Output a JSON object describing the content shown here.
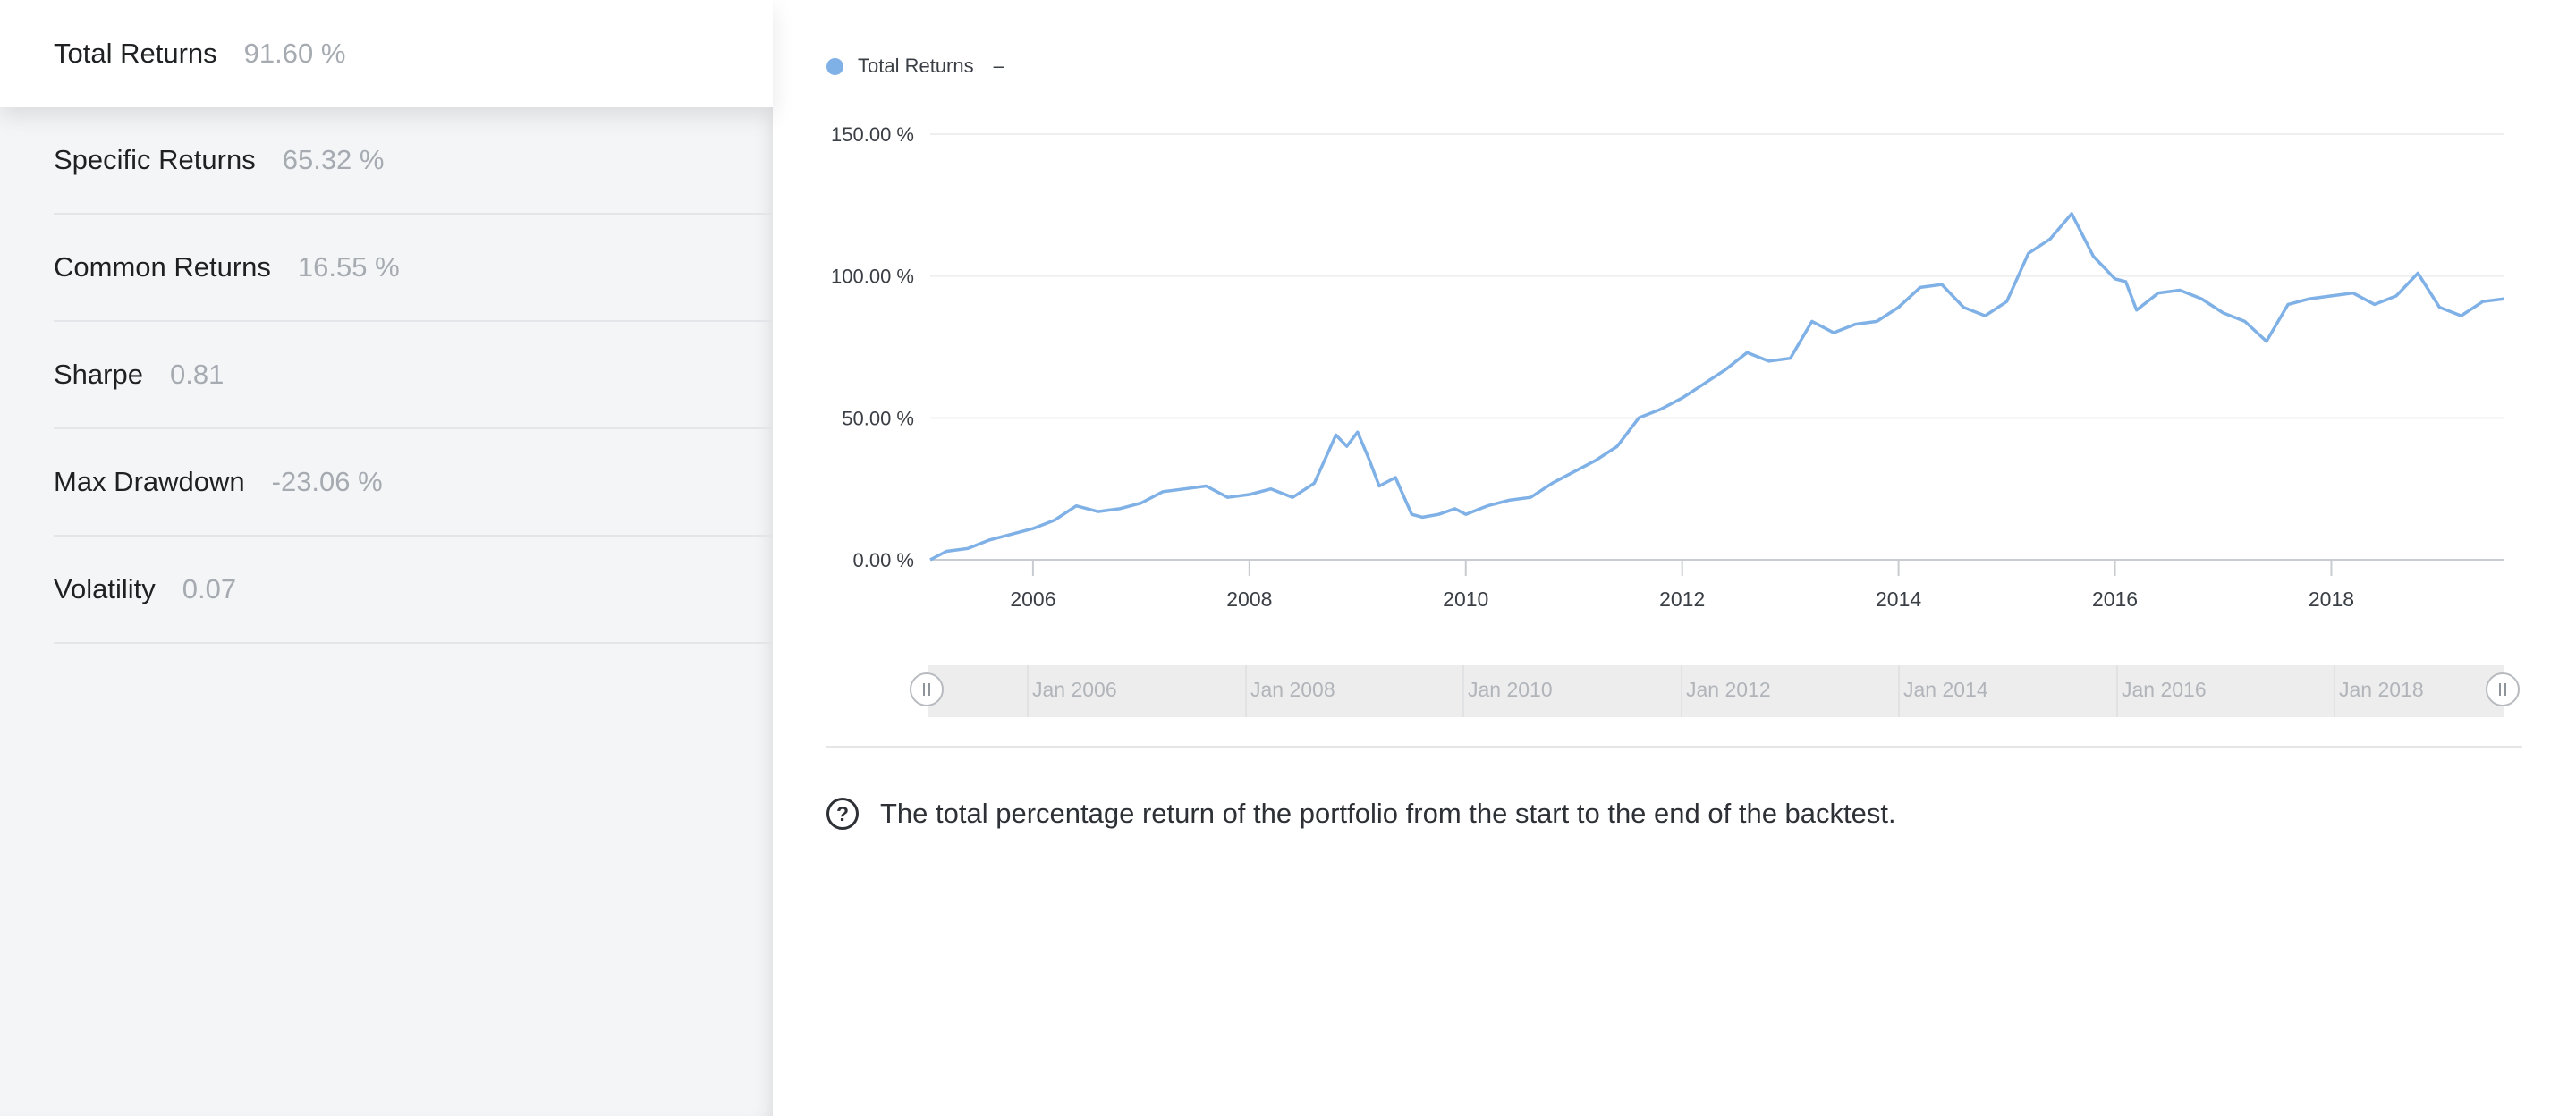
{
  "metrics": [
    {
      "label": "Total Returns",
      "value": "91.60 %"
    },
    {
      "label": "Specific Returns",
      "value": "65.32 %"
    },
    {
      "label": "Common Returns",
      "value": "16.55 %"
    },
    {
      "label": "Sharpe",
      "value": "0.81"
    },
    {
      "label": "Max Drawdown",
      "value": "-23.06 %"
    },
    {
      "label": "Volatility",
      "value": "0.07"
    }
  ],
  "legend": {
    "label": "Total Returns",
    "value": "–",
    "color": "#7fb1e6"
  },
  "navigator": {
    "labels": [
      "Jan 2006",
      "Jan 2008",
      "Jan 2010",
      "Jan 2012",
      "Jan 2014",
      "Jan 2016",
      "Jan 2018"
    ]
  },
  "description": "The total percentage return of the portfolio from the start to the end of the backtest.",
  "chart_data": {
    "type": "line",
    "title": "",
    "xlabel": "",
    "ylabel": "",
    "xlim": [
      2005.05,
      2019.6
    ],
    "ylim": [
      0,
      150
    ],
    "x_ticks": [
      "2006",
      "2008",
      "2010",
      "2012",
      "2014",
      "2016",
      "2018"
    ],
    "y_ticks": [
      "0.00 %",
      "50.00 %",
      "100.00 %",
      "150.00 %"
    ],
    "grid": true,
    "legend_position": "top-left",
    "series": [
      {
        "name": "Total Returns",
        "color": "#7fb1e6",
        "x": [
          2005.05,
          2005.2,
          2005.4,
          2005.6,
          2005.8,
          2006.0,
          2006.2,
          2006.4,
          2006.6,
          2006.8,
          2007.0,
          2007.2,
          2007.4,
          2007.6,
          2007.8,
          2008.0,
          2008.2,
          2008.4,
          2008.6,
          2008.8,
          2008.9,
          2009.0,
          2009.1,
          2009.2,
          2009.35,
          2009.5,
          2009.6,
          2009.75,
          2009.9,
          2010.0,
          2010.2,
          2010.4,
          2010.6,
          2010.8,
          2011.0,
          2011.2,
          2011.4,
          2011.6,
          2011.8,
          2012.0,
          2012.2,
          2012.4,
          2012.6,
          2012.8,
          2013.0,
          2013.2,
          2013.4,
          2013.6,
          2013.8,
          2014.0,
          2014.2,
          2014.4,
          2014.6,
          2014.8,
          2015.0,
          2015.2,
          2015.4,
          2015.6,
          2015.8,
          2016.0,
          2016.1,
          2016.2,
          2016.4,
          2016.6,
          2016.8,
          2017.0,
          2017.2,
          2017.4,
          2017.6,
          2017.8,
          2018.0,
          2018.2,
          2018.4,
          2018.6,
          2018.8,
          2019.0,
          2019.2,
          2019.4,
          2019.6
        ],
        "values": [
          0,
          3,
          4,
          7,
          9,
          11,
          14,
          19,
          17,
          18,
          20,
          24,
          25,
          26,
          22,
          23,
          25,
          22,
          27,
          44,
          40,
          45,
          36,
          26,
          29,
          16,
          15,
          16,
          18,
          16,
          19,
          21,
          22,
          27,
          31,
          35,
          40,
          50,
          53,
          57,
          62,
          67,
          73,
          70,
          71,
          84,
          80,
          83,
          84,
          89,
          96,
          97,
          89,
          86,
          91,
          108,
          113,
          122,
          107,
          99,
          98,
          88,
          94,
          95,
          92,
          87,
          84,
          77,
          90,
          92,
          93,
          94,
          90,
          93,
          101,
          89,
          86,
          91,
          92
        ]
      }
    ]
  }
}
